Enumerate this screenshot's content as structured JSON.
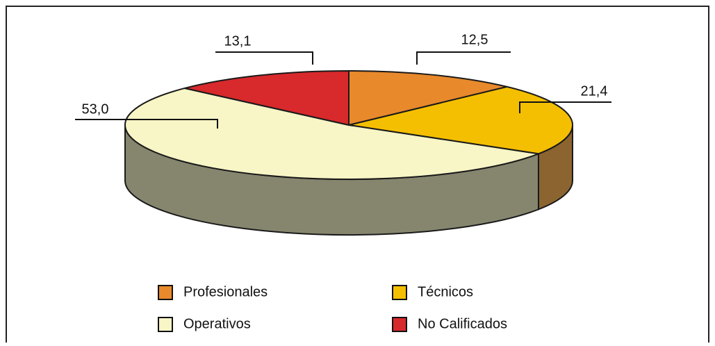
{
  "chart_data": {
    "type": "pie",
    "categories": [
      "Profesionales",
      "Técnicos",
      "Operativos",
      "No Calificados"
    ],
    "values": [
      12.5,
      21.4,
      53.0,
      13.1
    ],
    "value_labels": [
      "12,5",
      "21,4",
      "53,0",
      "13,1"
    ],
    "colors": [
      "#e8892c",
      "#f4bf00",
      "#f8f5c6",
      "#d8292c"
    ],
    "side_colors": [
      "#a85e1c",
      "#8c6430",
      "#86866f",
      "#8a1a1c"
    ]
  }
}
